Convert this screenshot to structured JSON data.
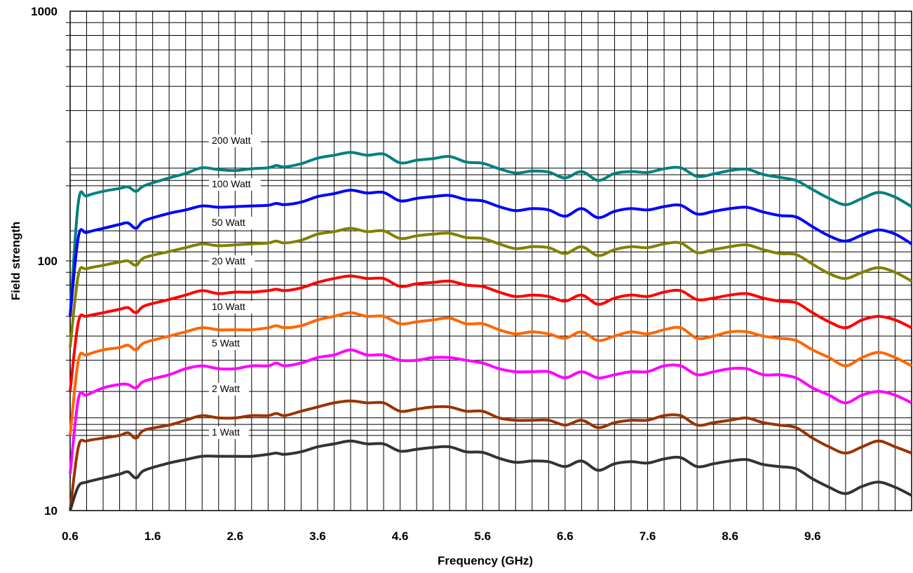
{
  "chart_data": {
    "type": "line",
    "title": "",
    "xlabel": "Frequency (GHz)",
    "ylabel": "Field strength",
    "x_scale": "linear",
    "y_scale": "log",
    "xlim": [
      0.6,
      10.8
    ],
    "ylim": [
      10,
      1000
    ],
    "x_ticks": [
      "0.6",
      "1.6",
      "2.6",
      "3.6",
      "4.6",
      "5.6",
      "6.6",
      "7.6",
      "8.6",
      "9.6"
    ],
    "y_ticks": [
      "10",
      "100",
      "1000"
    ],
    "grid": true,
    "legend": "inline labels",
    "x": [
      0.6,
      0.7,
      0.8,
      1.0,
      1.2,
      1.3,
      1.4,
      1.5,
      1.8,
      2.0,
      2.2,
      2.4,
      2.6,
      2.8,
      3.0,
      3.1,
      3.2,
      3.4,
      3.6,
      3.8,
      4.0,
      4.2,
      4.4,
      4.6,
      4.8,
      5.0,
      5.2,
      5.4,
      5.6,
      5.8,
      6.0,
      6.2,
      6.4,
      6.6,
      6.8,
      7.0,
      7.2,
      7.4,
      7.6,
      7.8,
      8.0,
      8.2,
      8.4,
      8.6,
      8.8,
      9.0,
      9.2,
      9.4,
      9.6,
      9.8,
      10.0,
      10.2,
      10.4,
      10.6,
      10.8
    ],
    "series": [
      {
        "name": "200 Watt",
        "color": "#008080",
        "values": [
          60,
          172,
          182,
          190,
          195,
          198,
          190,
          200,
          215,
          224,
          236,
          232,
          230,
          234,
          236,
          241,
          238,
          245,
          258,
          265,
          272,
          265,
          268,
          247,
          253,
          257,
          262,
          249,
          246,
          234,
          225,
          229,
          227,
          215,
          228,
          210,
          224,
          228,
          226,
          234,
          236,
          218,
          223,
          230,
          233,
          222,
          216,
          210,
          193,
          178,
          168,
          178,
          188,
          180,
          165
        ]
      },
      {
        "name": "100 Watt",
        "color": "#0000FF",
        "values": [
          60,
          125,
          130,
          135,
          140,
          142,
          135,
          145,
          155,
          160,
          166,
          164,
          165,
          166,
          167,
          170,
          168,
          172,
          181,
          186,
          192,
          187,
          188,
          174,
          178,
          181,
          183,
          176,
          174,
          165,
          159,
          162,
          160,
          151,
          162,
          149,
          158,
          162,
          160,
          165,
          167,
          154,
          158,
          162,
          164,
          157,
          152,
          150,
          137,
          126,
          120,
          127,
          133,
          128,
          117
        ]
      },
      {
        "name": "50 Watt",
        "color": "#808000",
        "values": [
          45,
          88,
          93,
          96,
          99,
          100,
          96,
          103,
          109,
          113,
          117,
          115,
          116,
          117,
          118,
          120,
          118,
          121,
          128,
          131,
          135,
          131,
          132,
          123,
          126,
          128,
          129,
          124,
          123,
          117,
          112,
          114,
          113,
          107,
          114,
          105,
          111,
          114,
          113,
          117,
          118,
          108,
          111,
          114,
          116,
          111,
          107,
          106,
          97,
          89,
          85,
          90,
          94,
          90,
          83
        ]
      },
      {
        "name": "20 Watt",
        "color": "#FF0000",
        "values": [
          30,
          57,
          60,
          62,
          64,
          65,
          62,
          66,
          70,
          73,
          76,
          74,
          75,
          75,
          76,
          77,
          76,
          78,
          82,
          85,
          87,
          85,
          85,
          79,
          81,
          82,
          83,
          80,
          79,
          75,
          72,
          73,
          72,
          69,
          73,
          67,
          71,
          73,
          72,
          75,
          76,
          70,
          71,
          73,
          74,
          71,
          69,
          68,
          62,
          57,
          54,
          58,
          60,
          58,
          54
        ]
      },
      {
        "name": "10 Watt",
        "color": "#FF6600",
        "values": [
          20,
          40,
          42,
          44,
          45,
          46,
          44,
          47,
          50,
          52,
          54,
          53,
          53,
          53,
          54,
          55,
          54,
          55,
          58,
          60,
          62,
          60,
          60,
          56,
          57,
          58,
          59,
          56,
          56,
          53,
          51,
          52,
          51,
          49,
          52,
          48,
          50,
          52,
          51,
          53,
          54,
          49,
          50,
          52,
          52,
          50,
          49,
          48,
          44,
          41,
          38,
          41,
          43,
          41,
          38
        ]
      },
      {
        "name": "5 Watt",
        "color": "#FF00FF",
        "values": [
          14,
          28,
          29,
          31,
          32,
          32,
          31,
          33,
          35,
          37,
          38,
          37,
          37,
          38,
          38,
          39,
          38,
          39,
          41,
          42,
          44,
          42,
          42,
          40,
          40,
          41,
          41,
          40,
          39,
          37,
          36,
          36,
          36,
          34,
          36,
          34,
          35,
          36,
          36,
          38,
          38,
          35,
          36,
          37,
          37,
          35,
          35,
          34,
          31,
          29,
          27,
          29,
          30,
          29,
          27
        ]
      },
      {
        "name": "2 Watt",
        "color": "#993300",
        "values": [
          10,
          18,
          19,
          19.5,
          20,
          20.5,
          19.5,
          21,
          22,
          23,
          24,
          23.5,
          23.5,
          24,
          24,
          24.5,
          24,
          25,
          26,
          27,
          27.5,
          27,
          27,
          25,
          25.5,
          26,
          26,
          25,
          25,
          23.5,
          23,
          23,
          23,
          22,
          23,
          21.5,
          22.5,
          23,
          23,
          24,
          24,
          22,
          22.5,
          23,
          23.5,
          22.5,
          22,
          21.5,
          19.5,
          18,
          17,
          18,
          19,
          18,
          17
        ]
      },
      {
        "name": "1 Watt",
        "color": "#333333",
        "values": [
          9,
          12.5,
          13,
          13.5,
          14,
          14.3,
          13.5,
          14.5,
          15.5,
          16,
          16.5,
          16.5,
          16.5,
          16.5,
          16.8,
          17,
          16.8,
          17.2,
          18,
          18.5,
          19,
          18.5,
          18.5,
          17.3,
          17.6,
          17.9,
          18,
          17.2,
          17.1,
          16.2,
          15.6,
          15.8,
          15.7,
          15,
          15.8,
          14.5,
          15.4,
          15.7,
          15.5,
          16.1,
          16.3,
          15,
          15.4,
          15.8,
          16,
          15.3,
          15,
          14.7,
          13.4,
          12.4,
          11.7,
          12.5,
          13,
          12.4,
          11.5
        ]
      }
    ]
  }
}
